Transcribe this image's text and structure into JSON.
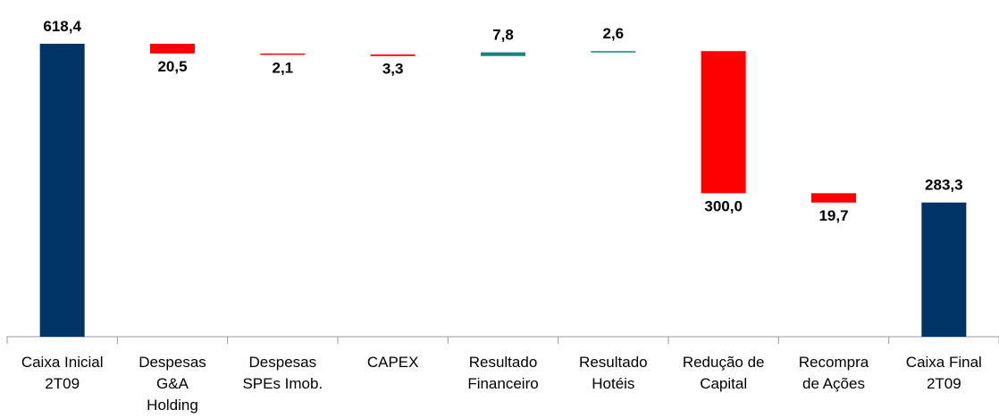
{
  "chart_data": {
    "type": "waterfall",
    "categories": [
      "Caixa Inicial\n2T09",
      "Despesas\nG&A\nHolding",
      "Despesas\nSPEs Imob.",
      "CAPEX",
      "Resultado\nFinanceiro",
      "Resultado\nHotéis",
      "Redução de\nCapital",
      "Recompra\nde Ações",
      "Caixa Final\n2T09"
    ],
    "measures": [
      "total",
      "relative",
      "relative",
      "relative",
      "relative",
      "relative",
      "relative",
      "relative",
      "total"
    ],
    "values": [
      618.4,
      -20.5,
      -2.1,
      -3.3,
      7.8,
      2.6,
      -300.0,
      -19.7,
      283.3
    ],
    "value_labels": [
      "618,4",
      "20,5",
      "2,1",
      "3,3",
      "7,8",
      "2,6",
      "300,0",
      "19,7",
      "283,3"
    ],
    "colors": {
      "total": "#003366",
      "increase": "#1a8080",
      "decrease": "#ff0000"
    }
  }
}
